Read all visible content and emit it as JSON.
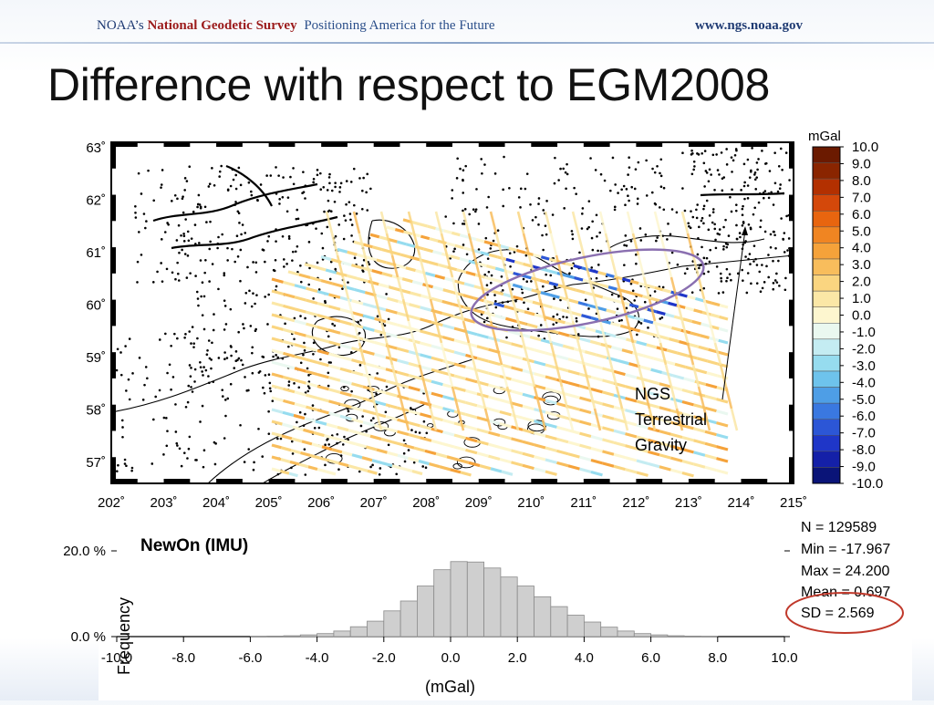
{
  "header": {
    "brand_prefix": "NOAA’s",
    "brand_name": "National Geodetic Survey",
    "tagline": "Positioning America for the Future",
    "website": "www.ngs.noaa.gov"
  },
  "slide": {
    "title": "Difference with respect to EGM2008"
  },
  "colors": {
    "brand_red": "#9b1b1b",
    "brand_blue": "#1f3b73",
    "ellipse_purple": "#8a6fb0",
    "sd_circle_red": "#c0392b",
    "hist_bar": "#cfcfcf"
  },
  "chart_data": [
    {
      "type": "heatmap",
      "title": "",
      "x_ticks": [
        "202˚",
        "203˚",
        "204˚",
        "205˚",
        "206˚",
        "207˚",
        "208˚",
        "209˚",
        "210˚",
        "211˚",
        "212˚",
        "213˚",
        "214˚",
        "215˚"
      ],
      "y_ticks": [
        "63˚",
        "62˚",
        "61˚",
        "60˚",
        "59˚",
        "58˚",
        "57˚"
      ],
      "xlim": [
        202,
        215
      ],
      "ylim": [
        56.6,
        63.1
      ],
      "colorbar": {
        "unit": "mGal",
        "labels": [
          "10.0",
          "9.0",
          "8.0",
          "7.0",
          "6.0",
          "5.0",
          "4.0",
          "3.0",
          "2.0",
          "1.0",
          "0.0",
          "-1.0",
          "-2.0",
          "-3.0",
          "-4.0",
          "-5.0",
          "-6.0",
          "-7.0",
          "-8.0",
          "-9.0",
          "-10.0"
        ],
        "colors": [
          "#6b1a00",
          "#8a2500",
          "#b33000",
          "#d4480a",
          "#e8650f",
          "#f08522",
          "#f5a23a",
          "#f8bd5c",
          "#fad580",
          "#fbe7a6",
          "#fdf6cf",
          "#eaf8f0",
          "#c4ecf2",
          "#96dcef",
          "#6ec3ec",
          "#4e9ee6",
          "#3a78e0",
          "#2c56d6",
          "#1f36c8",
          "#1420a8",
          "#0a1478"
        ]
      },
      "annotation": {
        "text_lines": [
          "NGS",
          "Terrestrial",
          "Gravity"
        ]
      }
    },
    {
      "type": "bar",
      "legend_label": "NewOn (IMU)",
      "ylabel": "Frequency",
      "xlabel": "(mGal)",
      "y_ticks": [
        "20.0 %",
        "0.0 %"
      ],
      "ylim": [
        0,
        20
      ],
      "xlim": [
        -10,
        10
      ],
      "x_ticks": [
        "-10.0",
        "-8.0",
        "-6.0",
        "-4.0",
        "-2.0",
        "0.0",
        "2.0",
        "4.0",
        "6.0",
        "8.0",
        "10.0"
      ],
      "bin_width": 0.5,
      "categories": [
        -10,
        -9.5,
        -9,
        -8.5,
        -8,
        -7.5,
        -7,
        -6.5,
        -6,
        -5.5,
        -5,
        -4.5,
        -4,
        -3.5,
        -3,
        -2.5,
        -2,
        -1.5,
        -1,
        -0.5,
        0,
        0.5,
        1,
        1.5,
        2,
        2.5,
        3,
        3.5,
        4,
        4.5,
        5,
        5.5,
        6,
        6.5,
        7,
        7.5,
        8,
        8.5,
        9,
        9.5
      ],
      "values": [
        0,
        0,
        0,
        0,
        0,
        0,
        0,
        0,
        0.05,
        0.1,
        0.2,
        0.4,
        0.7,
        1.3,
        2.3,
        3.6,
        6.0,
        8.3,
        11.8,
        15.6,
        17.5,
        17.4,
        16.0,
        13.9,
        11.8,
        9.3,
        7.0,
        5.0,
        3.4,
        2.2,
        1.3,
        0.7,
        0.4,
        0.2,
        0.1,
        0.05,
        0,
        0,
        0,
        0
      ],
      "stats": {
        "n": "N =  129589",
        "min": "Min = -17.967",
        "max": "Max = 24.200",
        "mean": "Mean = 0.697",
        "sd": "SD = 2.569"
      }
    }
  ]
}
